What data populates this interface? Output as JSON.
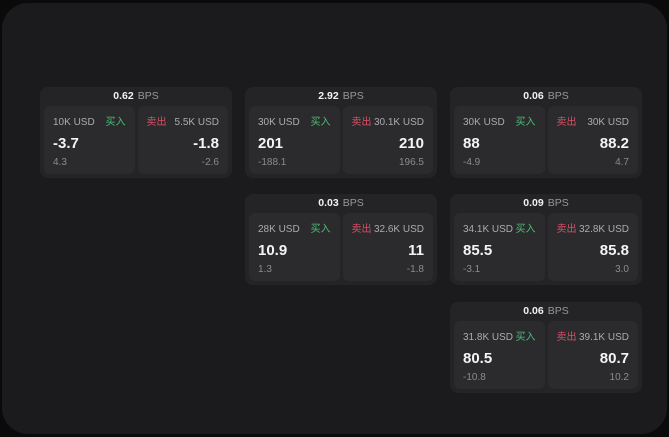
{
  "labels": {
    "bps": "BPS",
    "buy": "买入",
    "sell": "卖出"
  },
  "colors": {
    "background": "#0a0a0b",
    "panel": "#1b1b1d",
    "card": "#242427",
    "cell": "#2b2b2e",
    "buy_green": "#4dbd79",
    "sell_red": "#d94f66",
    "value_white": "#f4f4f6",
    "label_gray": "#ababb0",
    "delta_gray": "#8a8a90"
  },
  "cards": [
    {
      "spread": "0.62",
      "buy": {
        "amount": "10K USD",
        "price": "-3.7",
        "delta": "4.3"
      },
      "sell": {
        "amount": "5.5K USD",
        "price": "-1.8",
        "delta": "-2.6"
      }
    },
    {
      "spread": "2.92",
      "buy": {
        "amount": "30K USD",
        "price": "201",
        "delta": "-188.1"
      },
      "sell": {
        "amount": "30.1K USD",
        "price": "210",
        "delta": "196.5"
      }
    },
    {
      "spread": "0.06",
      "buy": {
        "amount": "30K USD",
        "price": "88",
        "delta": "-4.9"
      },
      "sell": {
        "amount": "30K USD",
        "price": "88.2",
        "delta": "4.7"
      }
    },
    {
      "spread": "0.03",
      "buy": {
        "amount": "28K USD",
        "price": "10.9",
        "delta": "1.3"
      },
      "sell": {
        "amount": "32.6K USD",
        "price": "11",
        "delta": "-1.8"
      }
    },
    {
      "spread": "0.09",
      "buy": {
        "amount": "34.1K USD",
        "price": "85.5",
        "delta": "-3.1"
      },
      "sell": {
        "amount": "32.8K USD",
        "price": "85.8",
        "delta": "3.0"
      }
    },
    {
      "spread": "0.06",
      "buy": {
        "amount": "31.8K USD",
        "price": "80.5",
        "delta": "-10.8"
      },
      "sell": {
        "amount": "39.1K USD",
        "price": "80.7",
        "delta": "10.2"
      }
    }
  ]
}
